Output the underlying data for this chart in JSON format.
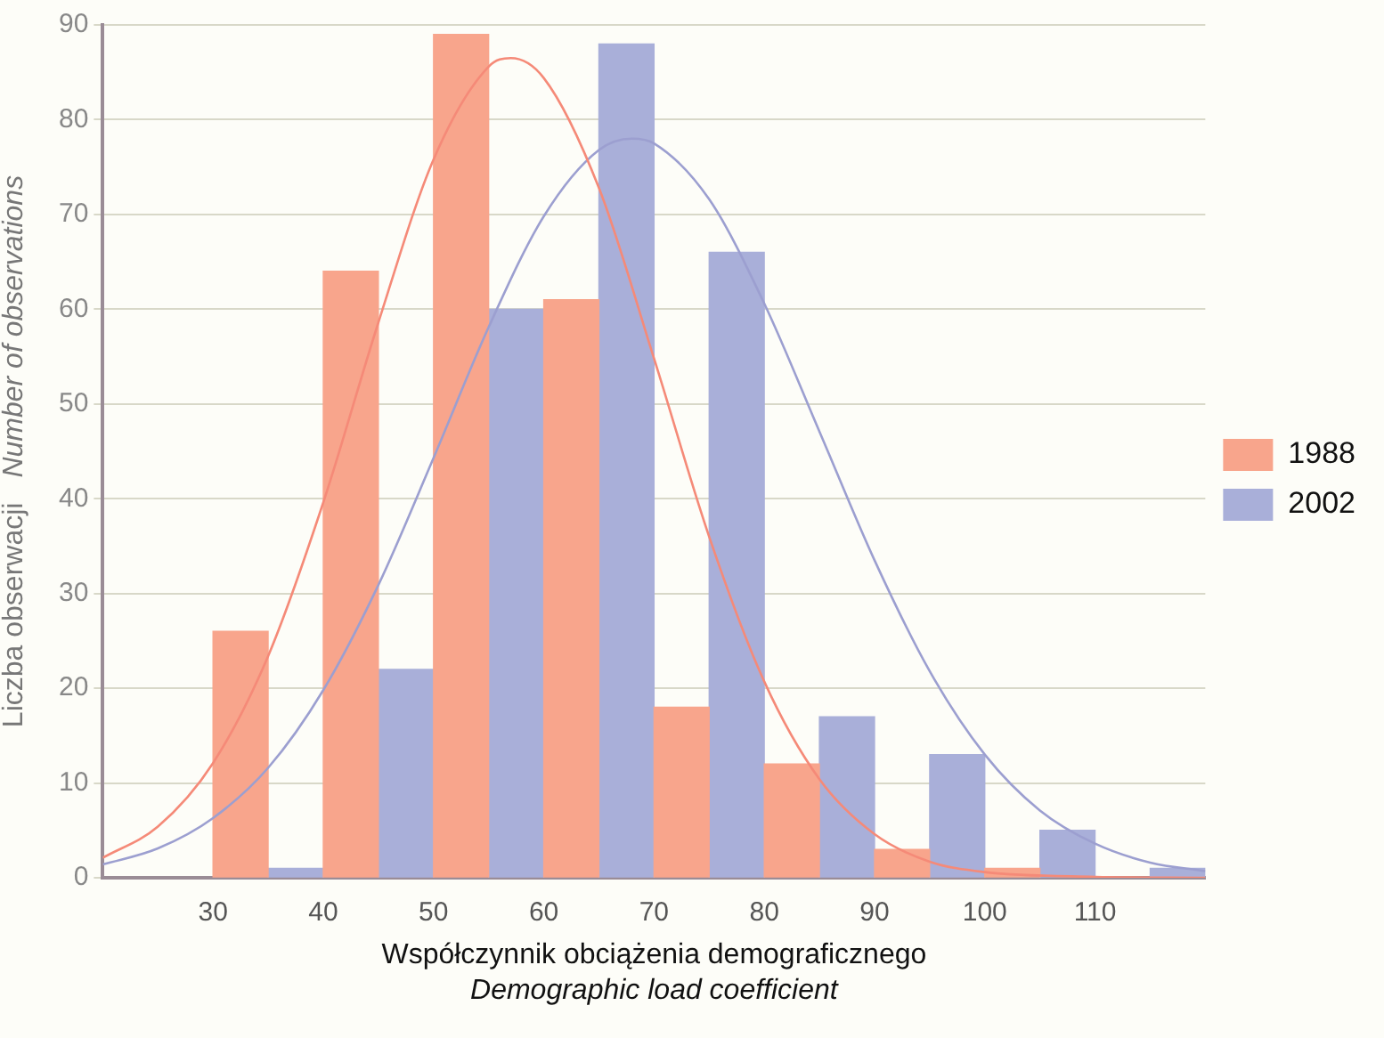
{
  "chart_data": {
    "type": "histogram",
    "xlabel": "Współczynnik obciążenia demograficznego\nDemographic load coefficient",
    "ylabel": "Liczba obserwacji\nNumber of observations",
    "bins": [
      30,
      40,
      50,
      60,
      70,
      80,
      90,
      100,
      110,
      120
    ],
    "series": [
      {
        "name": "1988",
        "color": "#f8a58c",
        "values": [
          26,
          64,
          89,
          61,
          18,
          12,
          3,
          1,
          0
        ]
      },
      {
        "name": "2002",
        "color": "#a9afd9",
        "values": [
          1,
          22,
          60,
          88,
          66,
          17,
          13,
          5,
          1
        ]
      },
      {
        "type": "line",
        "color": "#f58a78",
        "x": [
          20,
          25,
          30,
          35,
          40,
          45,
          50,
          55,
          57,
          60,
          65,
          70,
          75,
          80,
          85,
          90,
          95,
          100,
          110,
          120
        ],
        "values": [
          2.1,
          5.4,
          12.1,
          23.4,
          39.6,
          58.6,
          75.8,
          85.6,
          86.5,
          84.4,
          72.8,
          54.8,
          36.0,
          20.7,
          10.4,
          4.6,
          1.7,
          0.6,
          0.1,
          0
        ]
      },
      {
        "type": "line",
        "color": "#9c9fd0",
        "x": [
          20,
          25,
          30,
          35,
          40,
          45,
          50,
          55,
          60,
          65,
          68,
          70,
          75,
          80,
          85,
          90,
          95,
          100,
          105,
          110,
          115,
          120
        ],
        "values": [
          1.4,
          3.1,
          6.3,
          11.6,
          19.8,
          30.9,
          44.3,
          58.1,
          69.8,
          76.8,
          78,
          77.5,
          71.6,
          60.6,
          47.1,
          33.5,
          21.8,
          13.0,
          7.1,
          3.6,
          1.6,
          0.7
        ]
      }
    ],
    "xlim": [
      20,
      120
    ],
    "xticks": [
      30,
      40,
      50,
      60,
      70,
      80,
      90,
      100,
      110
    ],
    "ylim": [
      0,
      90
    ],
    "yticks": [
      0,
      10,
      20,
      30,
      40,
      50,
      60,
      70,
      80,
      90
    ],
    "grid": "y",
    "legend": "right",
    "marker": "none"
  }
}
